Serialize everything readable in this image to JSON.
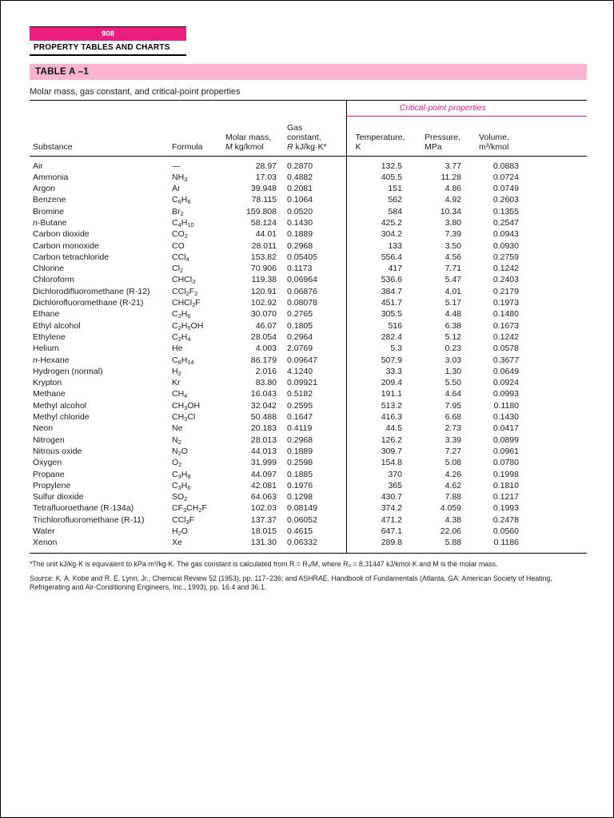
{
  "page": {
    "page_number": "908",
    "section_title": "PROPERTY TABLES AND CHARTS"
  },
  "colors": {
    "magenta": "#ec1e80",
    "light_pink": "#f6b4cf"
  },
  "table": {
    "id": "TABLE A –1",
    "caption": "Molar mass, gas constant, and critical-point properties",
    "group_header": "Critical-point properties",
    "columns": {
      "substance": "Substance",
      "formula": "Formula",
      "molar_mass_line1": "Molar mass,",
      "molar_mass_italic": "M",
      "molar_mass_rest": " kg/kmol",
      "gas_line1": "Gas",
      "gas_line2": "constant,",
      "gas_italic": "R",
      "gas_rest": " kJ/kg·K*",
      "temp_line1": "Temperature,",
      "temp_line2": "K",
      "press_line1": "Pressure,",
      "press_line2": "MPa",
      "vol_line1": "Volume,",
      "vol_line2": "m³/kmol"
    },
    "rows": [
      [
        "Air",
        "—",
        "28.97",
        "0.2870",
        "132.5",
        "3.77",
        "0.0883"
      ],
      [
        "Ammonia",
        "NH3",
        "17.03",
        "0.4882",
        "405.5",
        "11.28",
        "0.0724"
      ],
      [
        "Argon",
        "Ar",
        "39.948",
        "0.2081",
        "151",
        "4.86",
        "0.0749"
      ],
      [
        "Benzene",
        "C6H6",
        "78.115",
        "0.1064",
        "562",
        "4.92",
        "0.2603"
      ],
      [
        "Bromine",
        "Br2",
        "159.808",
        "0.0520",
        "584",
        "10.34",
        "0.1355"
      ],
      [
        "n-Butane",
        "C4H10",
        "58.124",
        "0.1430",
        "425.2",
        "3.80",
        "0.2547"
      ],
      [
        "Carbon dioxide",
        "CO2",
        "44.01",
        "0.1889",
        "304.2",
        "7.39",
        "0.0943"
      ],
      [
        "Carbon monoxide",
        "CO",
        "28.011",
        "0.2968",
        "133",
        "3.50",
        "0.0930"
      ],
      [
        "Carbon tetrachloride",
        "CCl4",
        "153.82",
        "0.05405",
        "556.4",
        "4.56",
        "0.2759"
      ],
      [
        "Chlorine",
        "Cl2",
        "70.906",
        "0.1173",
        "417",
        "7.71",
        "0.1242"
      ],
      [
        "Chloroform",
        "CHCl3",
        "119.38",
        "0.06964",
        "536.6",
        "5.47",
        "0.2403"
      ],
      [
        "Dichlorodifluoromethane (R-12)",
        "CCl2F2",
        "120.91",
        "0.06876",
        "384.7",
        "4.01",
        "0.2179"
      ],
      [
        "Dichlorofluoromethane (R-21)",
        "CHCl2F",
        "102.92",
        "0.08078",
        "451.7",
        "5.17",
        "0.1973"
      ],
      [
        "Ethane",
        "C2H6",
        "30.070",
        "0.2765",
        "305.5",
        "4.48",
        "0.1480"
      ],
      [
        "Ethyl alcohol",
        "C2H5OH",
        "46.07",
        "0.1805",
        "516",
        "6.38",
        "0.1673"
      ],
      [
        "Ethylene",
        "C2H4",
        "28.054",
        "0.2964",
        "282.4",
        "5.12",
        "0.1242"
      ],
      [
        "Helium",
        "He",
        "4.003",
        "2.0769",
        "5.3",
        "0.23",
        "0.0578"
      ],
      [
        "n-Hexane",
        "C6H14",
        "86.179",
        "0.09647",
        "507.9",
        "3.03",
        "0.3677"
      ],
      [
        "Hydrogen (normal)",
        "H2",
        "2.016",
        "4.1240",
        "33.3",
        "1.30",
        "0.0649"
      ],
      [
        "Krypton",
        "Kr",
        "83.80",
        "0.09921",
        "209.4",
        "5.50",
        "0.0924"
      ],
      [
        "Methane",
        "CH4",
        "16.043",
        "0.5182",
        "191.1",
        "4.64",
        "0.0993"
      ],
      [
        "Methyl alcohol",
        "CH3OH",
        "32.042",
        "0.2595",
        "513.2",
        "7.95",
        "0.1180"
      ],
      [
        "Methyl chloride",
        "CH3Cl",
        "50.488",
        "0.1647",
        "416.3",
        "6.68",
        "0.1430"
      ],
      [
        "Neon",
        "Ne",
        "20.183",
        "0.4119",
        "44.5",
        "2.73",
        "0.0417"
      ],
      [
        "Nitrogen",
        "N2",
        "28.013",
        "0.2968",
        "126.2",
        "3.39",
        "0.0899"
      ],
      [
        "Nitrous oxide",
        "N2O",
        "44.013",
        "0.1889",
        "309.7",
        "7.27",
        "0.0961"
      ],
      [
        "Oxygen",
        "O2",
        "31.999",
        "0.2598",
        "154.8",
        "5.08",
        "0.0780"
      ],
      [
        "Propane",
        "C3H8",
        "44.097",
        "0.1885",
        "370",
        "4.26",
        "0.1998"
      ],
      [
        "Propylene",
        "C3H6",
        "42.081",
        "0.1976",
        "365",
        "4.62",
        "0.1810"
      ],
      [
        "Sulfur dioxide",
        "SO2",
        "64.063",
        "0.1298",
        "430.7",
        "7.88",
        "0.1217"
      ],
      [
        "Tetrafluoroethane (R-134a)",
        "CF3CH2F",
        "102.03",
        "0.08149",
        "374.2",
        "4.059",
        "0.1993"
      ],
      [
        "Trichlorofluoromethane (R-11)",
        "CCl3F",
        "137.37",
        "0.06052",
        "471.2",
        "4.38",
        "0.2478"
      ],
      [
        "Water",
        "H2O",
        "18.015",
        "0.4615",
        "647.1",
        "22.06",
        "0.0560"
      ],
      [
        "Xenon",
        "Xe",
        "131.30",
        "0.06332",
        "289.8",
        "5.88",
        "0.1186"
      ]
    ]
  },
  "footnotes": {
    "asterisk": "*The unit kJ/kg·K is equivalent to kPa·m³/kg·K. The gas constant is calculated from R = Rᵤ/M, where Rᵤ = 8.31447 kJ/kmol·K and M is the molar mass.",
    "source": "Source: K. A. Kobe and R. E. Lynn, Jr., Chemical Review 52 (1953), pp. 117–236; and ASHRAE, Handbook of Fundamentals (Atlanta, GA: American Society of Heating, Refrigerating and Air-Conditioning Engineers, Inc., 1993), pp. 16.4 and 36.1."
  }
}
